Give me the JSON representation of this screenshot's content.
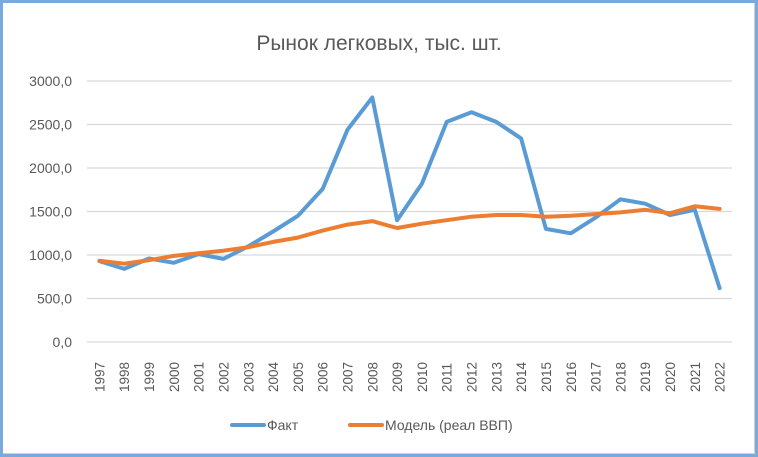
{
  "chart_data": {
    "type": "line",
    "title": "Рынок легковых, тыс. шт.",
    "xlabel": "",
    "ylabel": "",
    "ylim": [
      0,
      3000
    ],
    "yticks": [
      "0,0",
      "500,0",
      "1000,0",
      "1500,0",
      "2000,0",
      "2500,0",
      "3000,0"
    ],
    "ytick_values": [
      0,
      500,
      1000,
      1500,
      2000,
      2500,
      3000
    ],
    "grid": true,
    "legend_position": "bottom",
    "categories": [
      "1997",
      "1998",
      "1999",
      "2000",
      "2001",
      "2002",
      "2003",
      "2004",
      "2005",
      "2006",
      "2007",
      "2008",
      "2009",
      "2010",
      "2011",
      "2012",
      "2013",
      "2014",
      "2015",
      "2016",
      "2017",
      "2018",
      "2019",
      "2020",
      "2021",
      "2022"
    ],
    "series": [
      {
        "name": "Факт",
        "color": "#5b9bd5",
        "values": [
          930,
          840,
          960,
          910,
          1010,
          955,
          1100,
          1270,
          1450,
          1760,
          2440,
          2810,
          1400,
          1820,
          2530,
          2640,
          2530,
          2340,
          1300,
          1250,
          1430,
          1640,
          1590,
          1460,
          1520,
          620
        ]
      },
      {
        "name": "Модель (реал ВВП)",
        "color": "#ed7d31",
        "values": [
          935,
          900,
          940,
          990,
          1020,
          1050,
          1090,
          1150,
          1200,
          1280,
          1350,
          1390,
          1310,
          1360,
          1400,
          1440,
          1460,
          1460,
          1440,
          1450,
          1470,
          1490,
          1520,
          1480,
          1560,
          1530
        ]
      }
    ]
  },
  "legend": {
    "items": [
      {
        "label": "Факт",
        "color": "#5b9bd5"
      },
      {
        "label": "Модель (реал ВВП)",
        "color": "#ed7d31"
      }
    ]
  }
}
